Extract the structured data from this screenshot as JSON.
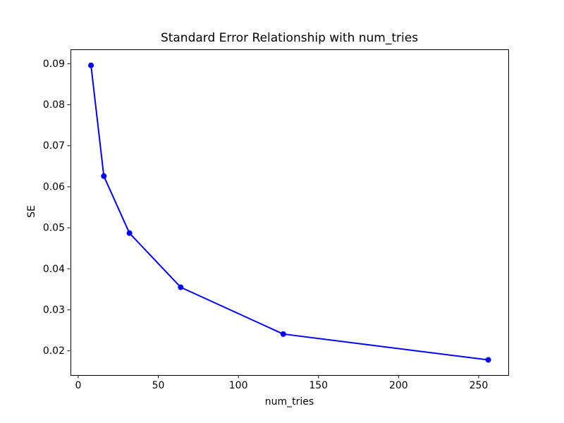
{
  "figure": {
    "background_color": "#ffffff",
    "text_color": "#000000"
  },
  "chart_data": {
    "type": "line",
    "title": "Standard Error Relationship with num_tries",
    "xlabel": "num_tries",
    "ylabel": "SE",
    "x": [
      8,
      16,
      32,
      64,
      128,
      256
    ],
    "y": [
      0.0896,
      0.0626,
      0.0487,
      0.0355,
      0.0241,
      0.0178
    ],
    "x_ticks": [
      0,
      50,
      100,
      150,
      200,
      250
    ],
    "x_tick_labels": [
      "0",
      "50",
      "100",
      "150",
      "200",
      "250"
    ],
    "y_ticks": [
      0.02,
      0.03,
      0.04,
      0.05,
      0.06,
      0.07,
      0.08,
      0.09
    ],
    "y_tick_labels": [
      "0.02",
      "0.03",
      "0.04",
      "0.05",
      "0.06",
      "0.07",
      "0.08",
      "0.09"
    ],
    "xlim": [
      -4.8,
      268.5
    ],
    "ylim": [
      0.0141,
      0.0935
    ],
    "grid": false,
    "legend": "none",
    "line_color": "#0000ff",
    "marker": "circle",
    "marker_color": "#0000ff",
    "spine_color": "#000000"
  }
}
